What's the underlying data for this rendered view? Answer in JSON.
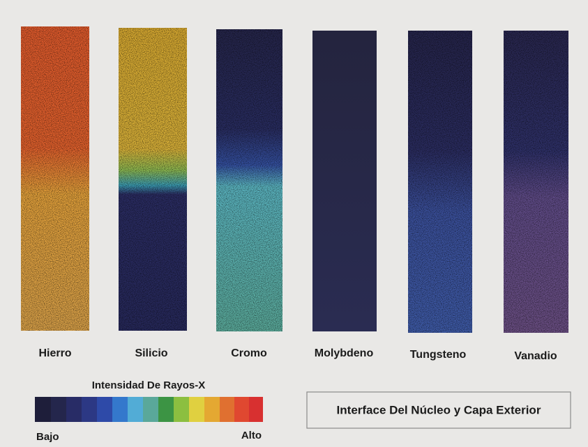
{
  "panels": [
    {
      "label": "Hierro"
    },
    {
      "label": "Silicio"
    },
    {
      "label": "Cromo"
    },
    {
      "label": "Molybdeno"
    },
    {
      "label": "Tungsteno"
    },
    {
      "label": "Vanadio"
    }
  ],
  "legend": {
    "title": "Intensidad De Rayos-X",
    "low": "Bajo",
    "high": "Alto"
  },
  "caption": "Interface Del Núcleo y Capa Exterior"
}
